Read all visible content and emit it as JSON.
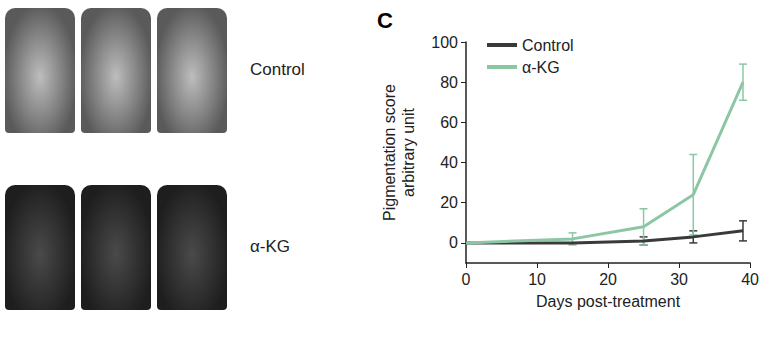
{
  "chart_data": {
    "type": "line",
    "title": "C",
    "x_label": "Days post-treatment",
    "y_label": "Pigmentation score\narbitrary unit",
    "xlim": [
      0,
      40
    ],
    "xticks": [
      0,
      10,
      20,
      30,
      40
    ],
    "ylim": [
      -10,
      100
    ],
    "yticks": [
      0,
      20,
      40,
      60,
      80,
      100
    ],
    "grid": false,
    "legend": "top-left",
    "x": [
      0,
      15,
      25,
      32,
      39
    ],
    "series": [
      {
        "name": "Control",
        "color": "#3a3a3a",
        "values": [
          0,
          0,
          1,
          3,
          6
        ],
        "errors": [
          0,
          0,
          2,
          3,
          5
        ]
      },
      {
        "name": "α-KG",
        "color": "#8cc7a5",
        "values": [
          0,
          2,
          8,
          24,
          80
        ],
        "errors": [
          0,
          3,
          9,
          20,
          9
        ]
      }
    ]
  },
  "image_panel": {
    "row_labels": [
      "Control",
      "α-KG"
    ]
  }
}
